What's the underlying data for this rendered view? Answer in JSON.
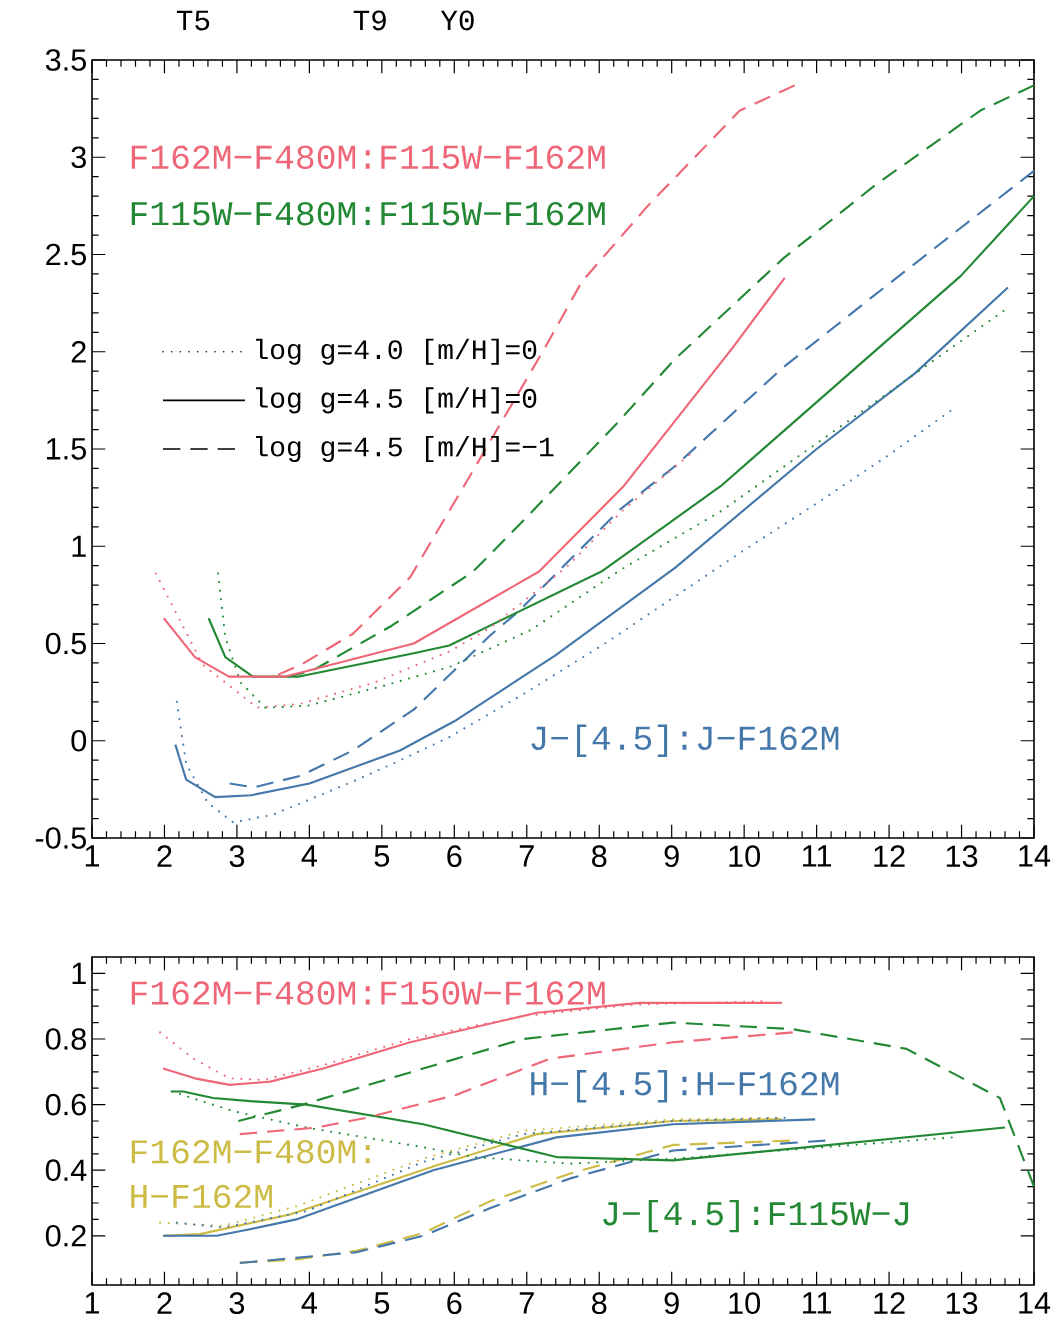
{
  "chart_data": [
    {
      "type": "line",
      "xlim": [
        1,
        14
      ],
      "ylim": [
        -0.5,
        3.5
      ],
      "xticks": [
        1,
        2,
        3,
        4,
        5,
        6,
        7,
        8,
        9,
        10,
        11,
        12,
        13,
        14
      ],
      "yticks": [
        -0.5,
        0,
        0.5,
        1,
        1.5,
        2,
        2.5,
        3,
        3.5
      ],
      "annotations": [
        "F162M−F480M:F115W−F162M",
        "F115W−F480M:F115W−F162M",
        "J−[4.5]:J−F162M",
        "log g=4.0 [m/H]=0",
        "log g=4.5 [m/H]=0",
        "log g=4.5 [m/H]=−1",
        "T5",
        "T9",
        "Y0"
      ],
      "series": [
        {
          "color": "#ee6677",
          "line_style": "dotted",
          "x": [
            1.88,
            2.53,
            3.28,
            3.88,
            4.9,
            5.94,
            6.49,
            7.54,
            8.34,
            9.28
          ],
          "values": [
            0.86,
            0.39,
            0.17,
            0.19,
            0.3,
            0.46,
            0.58,
            0.89,
            1.19,
            1.48
          ]
        },
        {
          "color": "#ee6677",
          "line_style": "solid",
          "x": [
            1.99,
            2.42,
            2.89,
            3.67,
            5.44,
            7.17,
            8.34,
            9.84,
            10.56
          ],
          "values": [
            0.63,
            0.43,
            0.33,
            0.33,
            0.5,
            0.87,
            1.31,
            2.02,
            2.38
          ]
        },
        {
          "color": "#ee6677",
          "line_style": "dashed",
          "x": [
            3.57,
            3.88,
            4.6,
            5.39,
            6.26,
            7.25,
            7.76,
            8.67,
            9.94,
            10.7
          ],
          "values": [
            0.34,
            0.39,
            0.55,
            0.84,
            1.39,
            2.02,
            2.36,
            2.75,
            3.24,
            3.37
          ]
        },
        {
          "color": "#228833",
          "line_style": "dotted",
          "x": [
            2.74,
            2.84,
            3.05,
            3.39,
            3.98,
            5.0,
            5.94,
            7.06,
            8.3,
            9.68,
            11.5,
            13.58
          ],
          "values": [
            0.86,
            0.53,
            0.3,
            0.17,
            0.18,
            0.28,
            0.38,
            0.57,
            0.88,
            1.18,
            1.66,
            2.21
          ]
        },
        {
          "color": "#228833",
          "line_style": "solid",
          "x": [
            2.61,
            2.84,
            3.22,
            3.86,
            5.44,
            5.93,
            8.03,
            9.68,
            12.99,
            14
          ],
          "values": [
            0.63,
            0.43,
            0.33,
            0.33,
            0.45,
            0.49,
            0.87,
            1.31,
            2.39,
            2.8
          ]
        },
        {
          "color": "#228833",
          "line_style": "dashed",
          "x": [
            3.7,
            4.04,
            5.13,
            6.26,
            7.0,
            8.24,
            9.04,
            10.54,
            11.82,
            13.26,
            14
          ],
          "values": [
            0.33,
            0.36,
            0.59,
            0.87,
            1.15,
            1.63,
            1.96,
            2.48,
            2.86,
            3.24,
            3.37
          ]
        },
        {
          "color": "#4477aa",
          "line_style": "dotted",
          "x": [
            2.17,
            2.3,
            2.6,
            2.95,
            3.5,
            4.6,
            5.2,
            5.94,
            7.0,
            8.08,
            9.0,
            10.0,
            11.0,
            12.0,
            12.9
          ],
          "values": [
            0.2,
            -0.12,
            -0.32,
            -0.42,
            -0.38,
            -0.21,
            -0.11,
            0.02,
            0.25,
            0.5,
            0.73,
            0.98,
            1.22,
            1.47,
            1.71
          ]
        },
        {
          "color": "#4477aa",
          "line_style": "solid",
          "x": [
            2.15,
            2.3,
            2.7,
            3.2,
            4.0,
            5.25,
            6.0,
            7.4,
            9.05,
            11.0,
            12.36,
            13.64
          ],
          "values": [
            -0.02,
            -0.2,
            -0.29,
            -0.28,
            -0.22,
            -0.05,
            0.1,
            0.44,
            0.89,
            1.5,
            1.89,
            2.33
          ]
        },
        {
          "color": "#4477aa",
          "line_style": "dashed",
          "x": [
            2.9,
            3.23,
            3.88,
            4.6,
            5.44,
            6.49,
            6.9,
            8.29,
            9.04,
            10.54,
            12.0,
            13.0,
            14.0
          ],
          "values": [
            -0.22,
            -0.24,
            -0.18,
            -0.05,
            0.16,
            0.54,
            0.67,
            1.19,
            1.41,
            1.92,
            2.35,
            2.64,
            2.93
          ]
        }
      ]
    },
    {
      "type": "line",
      "xlim": [
        1,
        14
      ],
      "ylim": [
        0.05,
        1.05
      ],
      "xticks": [
        1,
        2,
        3,
        4,
        5,
        6,
        7,
        8,
        9,
        10,
        11,
        12,
        13,
        14
      ],
      "yticks": [
        0.2,
        0.4,
        0.6,
        0.8,
        1
      ],
      "annotations": [
        "F162M−F480M:F150W−F162M",
        "J−[4.5]:F115W−J",
        "H−[4.5]:H−F162M",
        "F162M−F480M:",
        "H−F162M"
      ],
      "series": [
        {
          "color": "#ee6677",
          "line_style": "dotted",
          "x": [
            1.94,
            2.4,
            2.9,
            3.36,
            4.19,
            5.39,
            6.95,
            8.5,
            10.3
          ],
          "values": [
            0.82,
            0.74,
            0.68,
            0.675,
            0.72,
            0.8,
            0.87,
            0.905,
            0.915
          ]
        },
        {
          "color": "#ee6677",
          "line_style": "solid",
          "x": [
            1.98,
            2.42,
            2.9,
            3.46,
            4.19,
            5.39,
            7.14,
            8.56,
            10.52
          ],
          "values": [
            0.71,
            0.68,
            0.66,
            0.67,
            0.71,
            0.79,
            0.88,
            0.91,
            0.91
          ]
        },
        {
          "color": "#ee6677",
          "line_style": "dashed",
          "x": [
            3.04,
            4.1,
            4.79,
            6.03,
            7.32,
            9.02,
            10.67
          ],
          "values": [
            0.51,
            0.53,
            0.56,
            0.63,
            0.74,
            0.79,
            0.82
          ]
        },
        {
          "color": "#228833",
          "line_style": "dotted",
          "x": [
            2.1,
            2.95,
            3.96,
            5.57,
            6.26,
            7.6,
            9.02,
            12.88
          ],
          "values": [
            0.64,
            0.58,
            0.53,
            0.47,
            0.44,
            0.42,
            0.435,
            0.5
          ]
        },
        {
          "color": "#228833",
          "line_style": "solid",
          "x": [
            2.1,
            2.26,
            2.67,
            3.22,
            3.96,
            5.57,
            7.41,
            9.02,
            13.6
          ],
          "values": [
            0.64,
            0.64,
            0.62,
            0.61,
            0.6,
            0.54,
            0.44,
            0.43,
            0.53
          ]
        },
        {
          "color": "#228833",
          "line_style": "dashed",
          "x": [
            3.02,
            3.91,
            5.57,
            6.95,
            9.02,
            10.67,
            12.24,
            13.53,
            14
          ],
          "values": [
            0.55,
            0.6,
            0.71,
            0.8,
            0.85,
            0.83,
            0.77,
            0.62,
            0.35
          ]
        },
        {
          "color": "#4477aa",
          "line_style": "dotted",
          "x": [
            2.17,
            2.81,
            3.96,
            5.57,
            6.95,
            9.02,
            10.56
          ],
          "values": [
            0.24,
            0.225,
            0.275,
            0.425,
            0.51,
            0.55,
            0.56
          ]
        },
        {
          "color": "#4477aa",
          "line_style": "solid",
          "x": [
            1.98,
            2.72,
            3.18,
            3.82,
            5.71,
            7.41,
            9.02,
            10.98
          ],
          "values": [
            0.2,
            0.2,
            0.22,
            0.25,
            0.4,
            0.5,
            0.54,
            0.555
          ]
        },
        {
          "color": "#4477aa",
          "line_style": "dashed",
          "x": [
            3.04,
            4.65,
            5.57,
            6.49,
            7.6,
            9.02,
            11.12
          ],
          "values": [
            0.117,
            0.15,
            0.2,
            0.284,
            0.375,
            0.46,
            0.49
          ]
        },
        {
          "color": "#ccbb44",
          "line_style": "dotted",
          "x": [
            1.94,
            2.81,
            3.82,
            5.57,
            6.95,
            9.02,
            10.52
          ],
          "values": [
            0.24,
            0.23,
            0.29,
            0.435,
            0.52,
            0.555,
            0.56
          ]
        },
        {
          "color": "#ccbb44",
          "line_style": "solid",
          "x": [
            1.98,
            2.49,
            3.73,
            5.76,
            7.14,
            9.02,
            10.52
          ],
          "values": [
            0.2,
            0.205,
            0.265,
            0.415,
            0.51,
            0.55,
            0.555
          ]
        },
        {
          "color": "#ccbb44",
          "line_style": "dashed",
          "x": [
            3.04,
            3.82,
            4.65,
            5.57,
            6.49,
            7.6,
            9.02,
            10.63
          ],
          "values": [
            0.118,
            0.128,
            0.154,
            0.208,
            0.305,
            0.39,
            0.477,
            0.49
          ]
        }
      ]
    }
  ]
}
